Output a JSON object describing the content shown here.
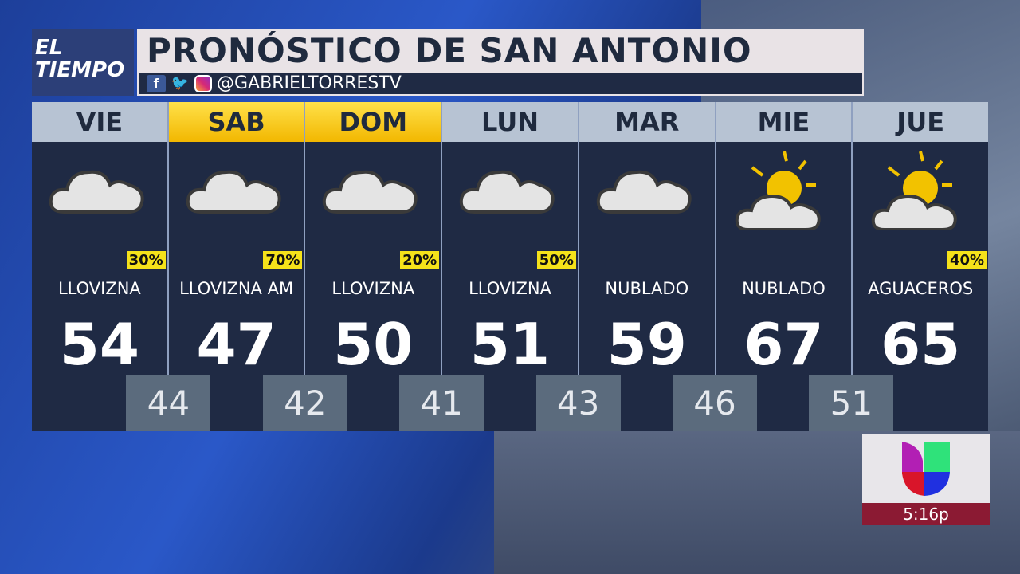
{
  "logo": {
    "line1": "EL",
    "line2": "TIEMPO"
  },
  "title": "PRONÓSTICO DE SAN ANTONIO",
  "social": {
    "handle": "@GABRIELTORRESTV",
    "icons": [
      "facebook-icon",
      "twitter-icon",
      "instagram-icon"
    ]
  },
  "days": [
    {
      "day": "VIE",
      "pop": "30%",
      "cond": "LLOVIZNA",
      "hi": "54",
      "icon": "cloud",
      "highlight": false
    },
    {
      "day": "SAB",
      "pop": "70%",
      "cond": "LLOVIZNA AM",
      "hi": "47",
      "icon": "cloud",
      "highlight": true
    },
    {
      "day": "DOM",
      "pop": "20%",
      "cond": "LLOVIZNA",
      "hi": "50",
      "icon": "cloud",
      "highlight": true
    },
    {
      "day": "LUN",
      "pop": "50%",
      "cond": "LLOVIZNA",
      "hi": "51",
      "icon": "cloud",
      "highlight": false
    },
    {
      "day": "MAR",
      "pop": "",
      "cond": "NUBLADO",
      "hi": "59",
      "icon": "cloud",
      "highlight": false
    },
    {
      "day": "MIE",
      "pop": "",
      "cond": "NUBLADO",
      "hi": "67",
      "icon": "partly-sunny",
      "highlight": false
    },
    {
      "day": "JUE",
      "pop": "40%",
      "cond": "AGUACEROS",
      "hi": "65",
      "icon": "partly-sunny",
      "highlight": false
    }
  ],
  "lows": [
    "44",
    "42",
    "41",
    "43",
    "46",
    "51"
  ],
  "clock": "5:16p",
  "colors": {
    "panel": "#1f2a44",
    "highlight": "#f2b700",
    "pop": "#f5e21a",
    "clock_bg": "#8b1a33"
  }
}
